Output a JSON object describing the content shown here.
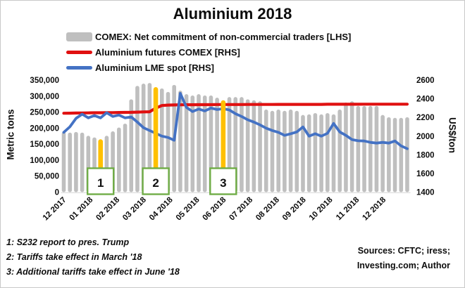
{
  "header": {
    "title": "Aluminium 2018"
  },
  "legend": {
    "items": [
      {
        "label": "COMEX: Net commitment of non-commercial traders [LHS]",
        "swatch": "bar",
        "color": "#bfbfbf"
      },
      {
        "label": "Aluminium futures COMEX [RHS]",
        "swatch": "line",
        "color": "#e01010"
      },
      {
        "label": "Aluminium LME spot [RHS]",
        "swatch": "line",
        "color": "#4472c4"
      }
    ]
  },
  "axes": {
    "left_title": "Metric tons",
    "right_title": "US$/ton"
  },
  "colors": {
    "bar": "#bfbfbf",
    "bar_highlight": "#ffc000",
    "futures_line": "#e01010",
    "spot_line": "#4472c4",
    "annotation_border": "#70ad47",
    "axis_line": "#d9d9d9"
  },
  "chart_data": {
    "type": "combo",
    "title": "Aluminium 2018",
    "gridlines": false,
    "legend_position": "top-left",
    "x_axis": {
      "labels": [
        "12 2017",
        "01 2018",
        "02 2018",
        "03 2018",
        "04 2018",
        "05 2018",
        "06 2018",
        "07 2018",
        "08 2018",
        "09 2018",
        "10 2018",
        "11 2018",
        "12 2018"
      ]
    },
    "left_axis": {
      "title": "Metric tons",
      "min": 0,
      "max": 350000,
      "step": 50000
    },
    "right_axis": {
      "title": "US$/ton",
      "min": 1400,
      "max": 2600,
      "step": 200
    },
    "series": [
      {
        "name": "COMEX: Net commitment of non-commercial traders [LHS]",
        "type": "bar",
        "axis": "left",
        "color": "#bfbfbf",
        "values": [
          188000,
          186000,
          188000,
          186000,
          176000,
          171000,
          165000,
          176000,
          190000,
          202000,
          214000,
          290000,
          332000,
          339000,
          341000,
          328000,
          324000,
          313000,
          335000,
          317000,
          306000,
          302000,
          306000,
          302000,
          302000,
          295000,
          287000,
          297000,
          297000,
          297000,
          290000,
          287000,
          284000,
          258000,
          254000,
          258000,
          254000,
          258000,
          254000,
          241000,
          243000,
          247000,
          243000,
          247000,
          243000,
          258000,
          280000,
          284000,
          269000,
          269000,
          269000,
          269000,
          241000,
          234000,
          232000,
          232000,
          234000
        ],
        "highlights": [
          {
            "index": 6,
            "color": "#ffc000"
          },
          {
            "index": 15,
            "color": "#ffc000"
          },
          {
            "index": 26,
            "color": "#ffc000"
          }
        ]
      },
      {
        "name": "Aluminium futures COMEX [RHS]",
        "type": "line",
        "axis": "right",
        "color": "#e01010",
        "values": [
          2245,
          2246,
          2247,
          2248,
          2249,
          2250,
          2250,
          2251,
          2252,
          2253,
          2254,
          2255,
          2257,
          2259,
          2261,
          2300,
          2328,
          2332,
          2334,
          2335,
          2336,
          2336,
          2337,
          2337,
          2337,
          2338,
          2338,
          2338,
          2338,
          2338,
          2339,
          2339,
          2339,
          2339,
          2339,
          2340,
          2340,
          2340,
          2340,
          2340,
          2340,
          2340,
          2340,
          2341,
          2341,
          2341,
          2341,
          2341,
          2341,
          2342,
          2342,
          2342,
          2342,
          2342,
          2342,
          2342,
          2342
        ]
      },
      {
        "name": "Aluminium LME spot [RHS]",
        "type": "line",
        "axis": "right",
        "color": "#4472c4",
        "values": [
          2040,
          2100,
          2190,
          2235,
          2195,
          2220,
          2195,
          2250,
          2210,
          2225,
          2195,
          2205,
          2150,
          2090,
          2060,
          2030,
          2000,
          1985,
          1955,
          2458,
          2308,
          2263,
          2290,
          2270,
          2300,
          2285,
          2293,
          2280,
          2240,
          2210,
          2175,
          2150,
          2120,
          2085,
          2060,
          2040,
          2008,
          2025,
          2045,
          2098,
          2000,
          2025,
          2000,
          2030,
          2135,
          2045,
          2008,
          1963,
          1950,
          1948,
          1933,
          1925,
          1933,
          1925,
          1948,
          1895,
          1865
        ]
      }
    ],
    "annotations": [
      {
        "label": "1",
        "bar_index": 6
      },
      {
        "label": "2",
        "bar_index": 15
      },
      {
        "label": "3",
        "bar_index": 26
      }
    ]
  },
  "footnotes": {
    "lines": [
      "1: S232 report to pres. Trump",
      "2: Tariffs take effect in March '18",
      "3: Additional tariffs take effect in June '18"
    ]
  },
  "sources": {
    "line1": "Sources: CFTC; iress;",
    "line2": "Investing.com;  Author"
  }
}
